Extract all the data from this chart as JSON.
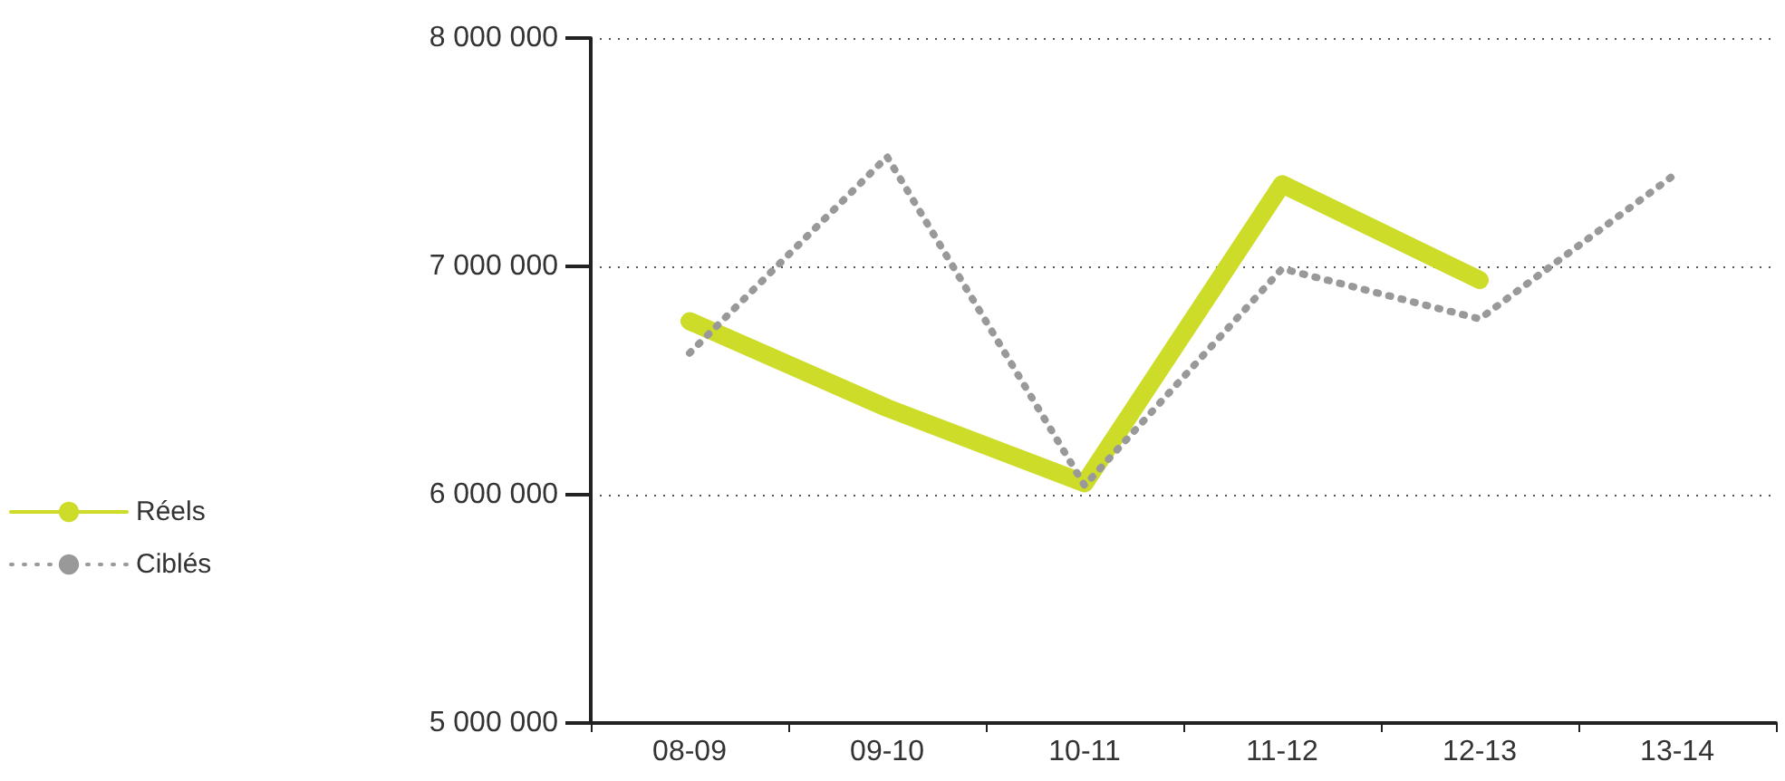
{
  "chart_data": {
    "type": "line",
    "categories": [
      "08-09",
      "09-10",
      "10-11",
      "11-12",
      "12-13",
      "13-14"
    ],
    "series": [
      {
        "name": "Réels",
        "color": "#cddc29",
        "line_style": "solid",
        "values": [
          6760000,
          6380000,
          6050000,
          7360000,
          6940000,
          null
        ]
      },
      {
        "name": "Ciblés",
        "color": "#999999",
        "line_style": "dotted",
        "values": [
          6620000,
          7480000,
          6040000,
          6990000,
          6770000,
          7410000
        ]
      }
    ],
    "ylim": [
      5000000,
      8000000
    ],
    "yticks": [
      {
        "value": 5000000,
        "label": "5 000 000"
      },
      {
        "value": 6000000,
        "label": "6 000 000"
      },
      {
        "value": 7000000,
        "label": "7 000 000"
      },
      {
        "value": 8000000,
        "label": "8 000 000"
      }
    ],
    "grid": "y",
    "legend": "left",
    "marker": "none"
  }
}
